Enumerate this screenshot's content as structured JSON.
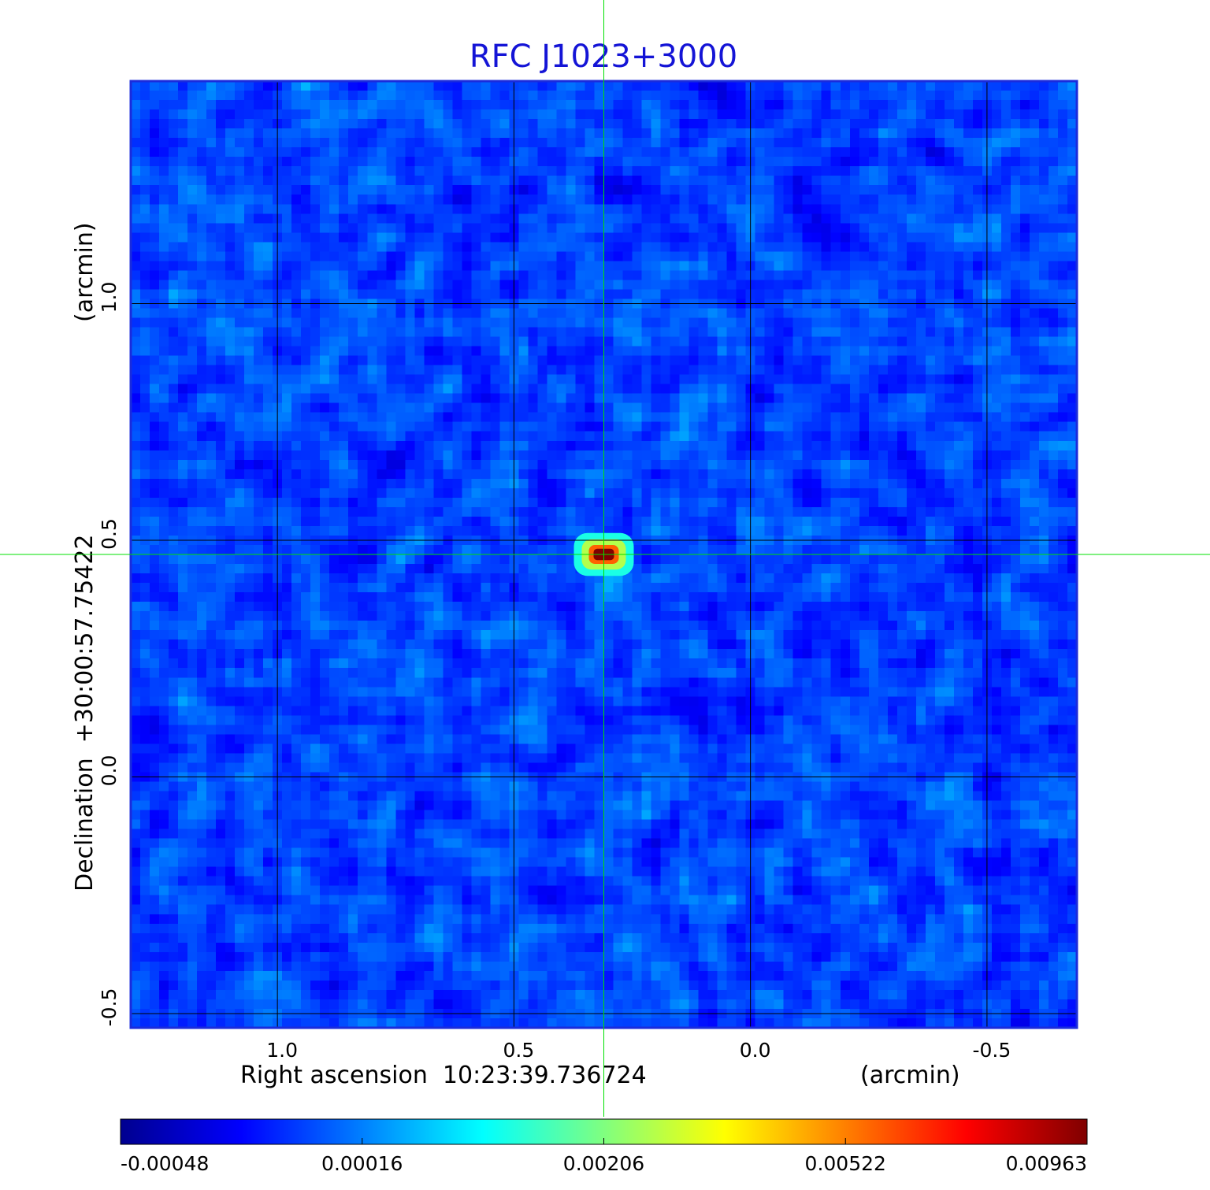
{
  "chart_data": {
    "type": "heatmap",
    "title": "RFC J1023+3000",
    "xlabel": "Right ascension  10:23:39.736724",
    "xlabel_unit": "(arcmin)",
    "ylabel": "Declination  +30:00:57.75422",
    "ylabel_unit": "(arcmin)",
    "x_ticks": [
      "1.0",
      "0.5",
      "0.0",
      "-0.5"
    ],
    "x_tick_values": [
      1.0,
      0.5,
      0.0,
      -0.5
    ],
    "xlim": [
      1.31,
      -0.69
    ],
    "y_ticks": [
      "1.0",
      "0.5",
      "0.0",
      "-0.5"
    ],
    "y_tick_values": [
      1.0,
      0.5,
      0.0,
      -0.5
    ],
    "ylim": [
      -0.53,
      1.47
    ],
    "grid": true,
    "colormap": "jet",
    "colorbar_ticks": [
      "-0.00048",
      "0.00016",
      "0.00206",
      "0.00522",
      "0.00963"
    ],
    "colorbar_placement": "bottom",
    "source_peak": {
      "x": 0.31,
      "y": 0.47,
      "value": 0.00963
    },
    "crosshair": {
      "x": 0.31,
      "y": 0.47,
      "color": "#00e000"
    },
    "colors": {
      "title": "#1414d6",
      "grid": "#000000",
      "frame": "#1a2bdc",
      "crosshair": "#00e000"
    }
  }
}
